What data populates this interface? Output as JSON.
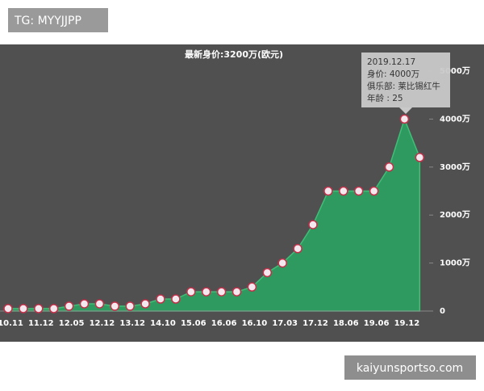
{
  "header": {
    "tag": "TG: MYYJJPP"
  },
  "chart_data": {
    "type": "area",
    "title": "最新身价:3200万(欧元)",
    "categories": [
      "10.11",
      null,
      "11.12",
      null,
      "12.05",
      null,
      "12.12",
      null,
      "13.12",
      null,
      "14.10",
      null,
      "15.06",
      null,
      "16.06",
      null,
      "16.10",
      null,
      "17.03",
      null,
      "17.12",
      null,
      "18.06",
      null,
      "19.06",
      null,
      "19.12",
      null
    ],
    "values": [
      50,
      50,
      50,
      50,
      100,
      150,
      150,
      100,
      100,
      150,
      250,
      250,
      400,
      400,
      400,
      400,
      500,
      800,
      1000,
      1300,
      1800,
      2500,
      2500,
      2500,
      2500,
      3000,
      4000,
      3200
    ],
    "color": "#2e9a5f",
    "ylim": [
      0,
      5000
    ],
    "yticks": [
      0,
      {
        "value": 1000,
        "label": "1000万"
      },
      {
        "value": 2000,
        "label": "2000万"
      },
      {
        "value": 3000,
        "label": "3000万"
      },
      {
        "value": 4000,
        "label": "4000万"
      },
      {
        "value": 5000,
        "label": "5000万"
      }
    ],
    "tooltip": {
      "lines": [
        "2019.12.17",
        "身价: 4000万",
        "俱乐部: 莱比锡红牛",
        "年龄 : 25"
      ]
    }
  },
  "footer": {
    "watermark": "kaiyunsportso.com"
  }
}
